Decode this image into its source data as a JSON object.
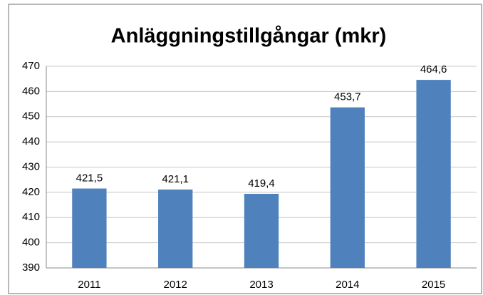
{
  "chart_data": {
    "type": "bar",
    "title": "Anläggningstillgångar (mkr)",
    "categories": [
      "2011",
      "2012",
      "2013",
      "2014",
      "2015"
    ],
    "values": [
      421.5,
      421.1,
      419.4,
      453.7,
      464.6
    ],
    "value_labels": [
      "421,5",
      "421,1",
      "419,4",
      "453,7",
      "464,6"
    ],
    "color": "#4f81bd",
    "ylim": [
      390,
      470
    ],
    "yticks": [
      390,
      400,
      410,
      420,
      430,
      440,
      450,
      460,
      470
    ],
    "grid": true
  }
}
